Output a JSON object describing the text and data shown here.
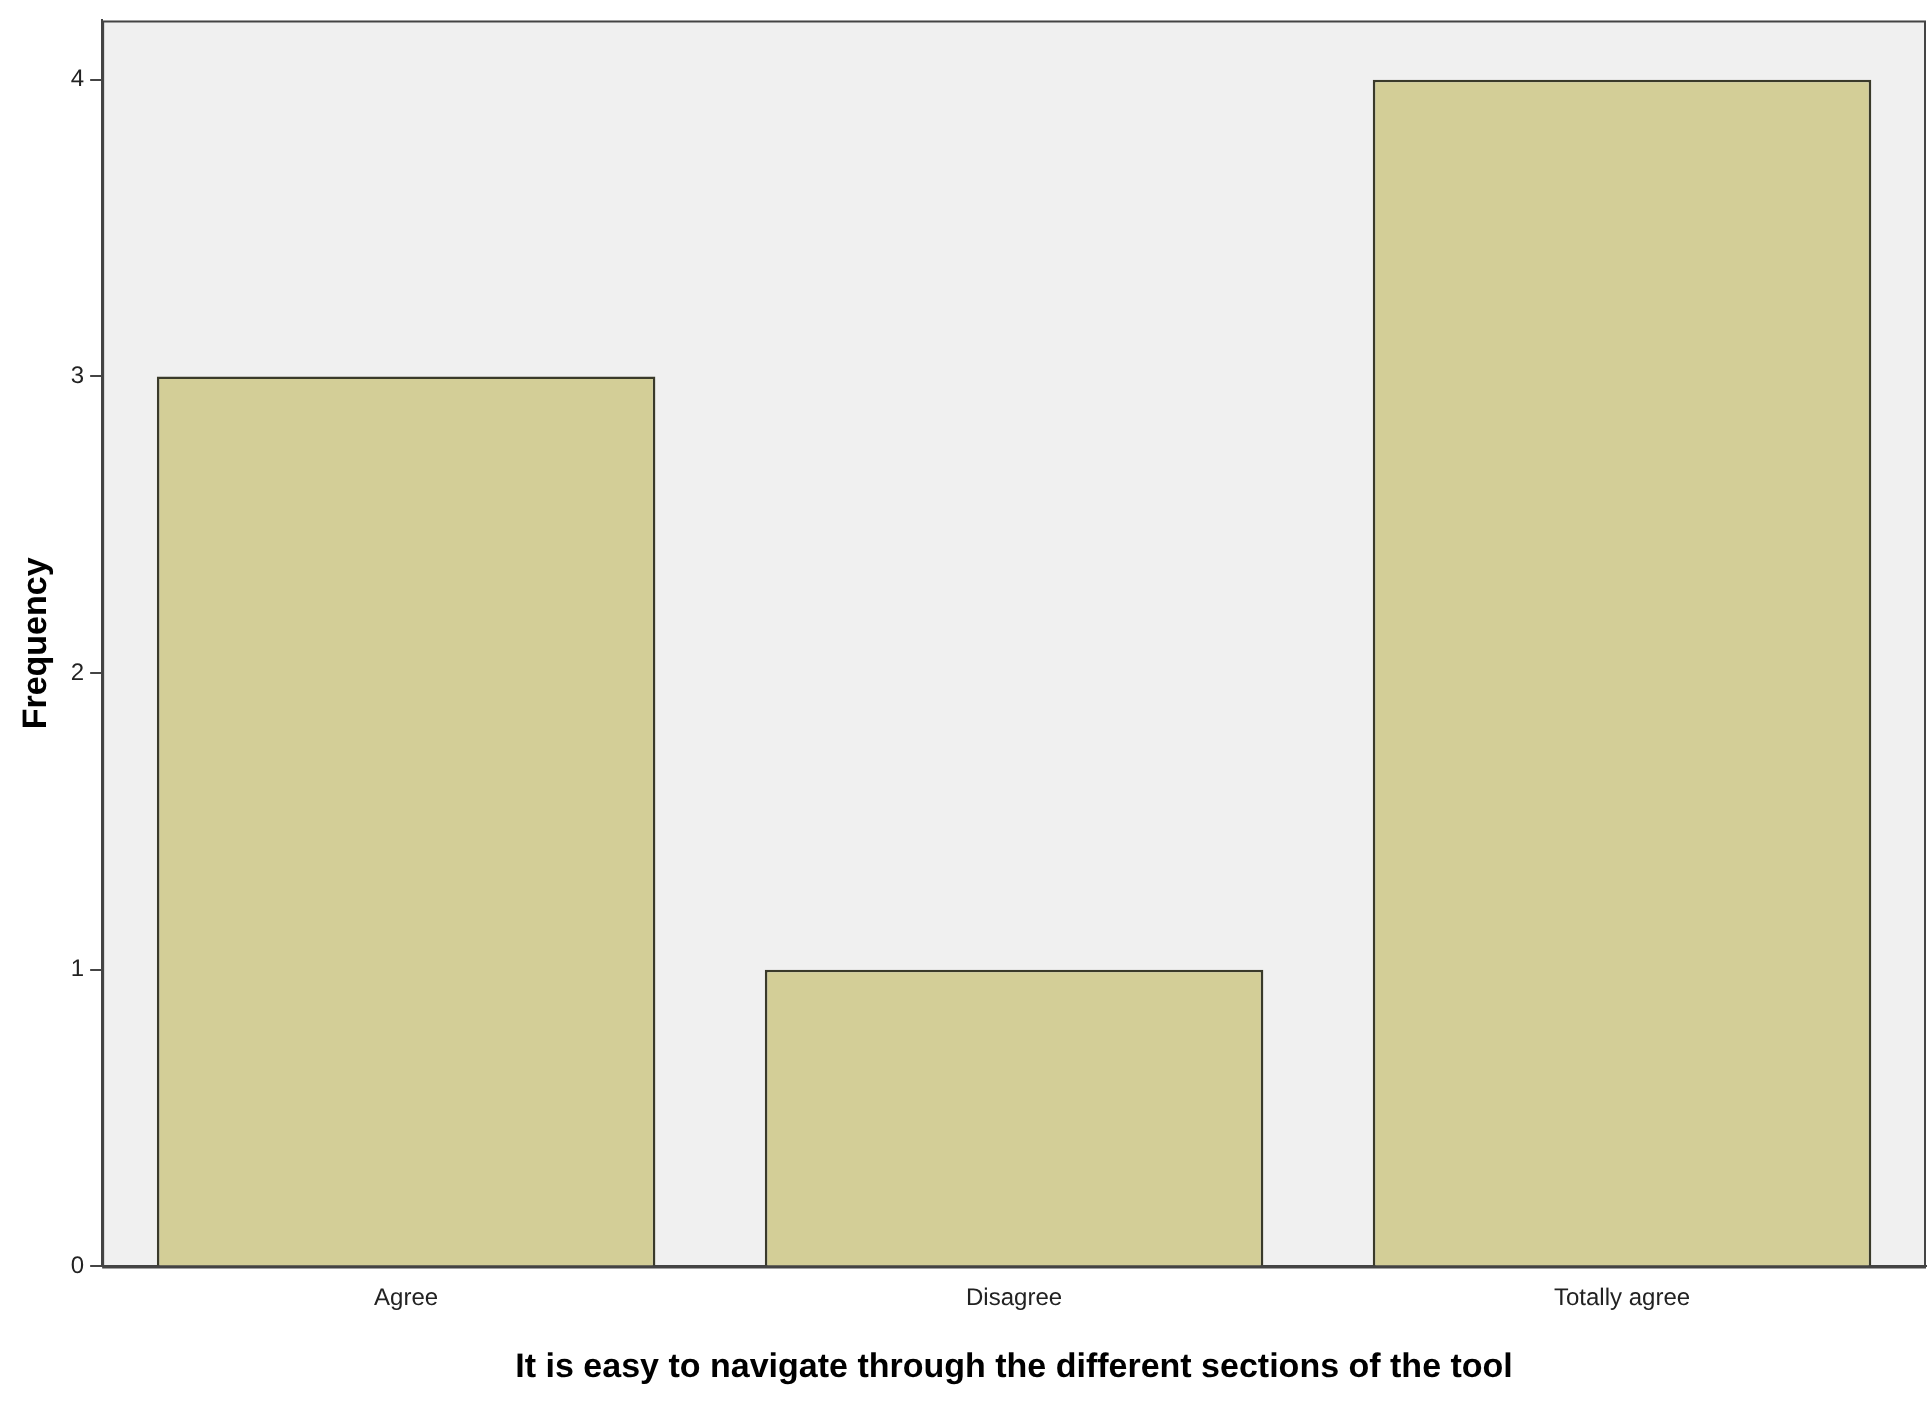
{
  "chart_data": {
    "type": "bar",
    "xlabel": "It is easy to navigate through the different sections of the tool",
    "ylabel": "Frequency",
    "categories": [
      "Agree",
      "Disagree",
      "Totally agree"
    ],
    "values": [
      3,
      1,
      4
    ],
    "color": "#d3ce97",
    "ylim": [
      0,
      4.2
    ],
    "yticks": [
      0,
      1,
      2,
      3,
      4
    ],
    "grid": false,
    "legend": false
  }
}
